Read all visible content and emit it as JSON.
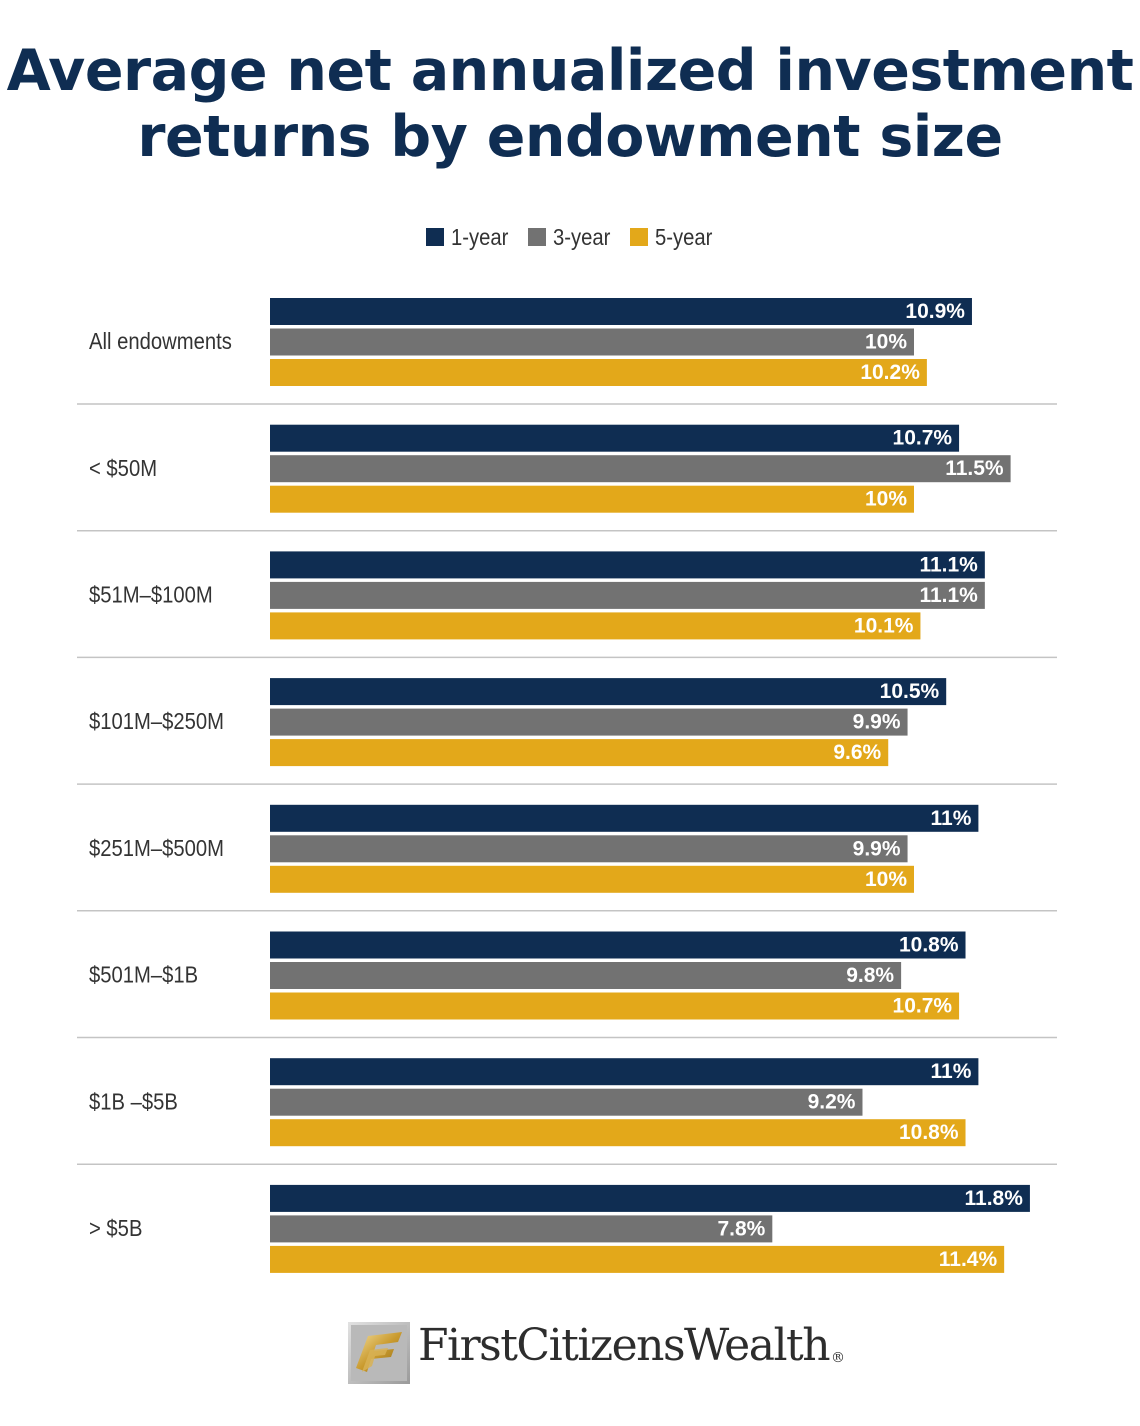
{
  "chart_data": {
    "type": "bar",
    "orientation": "horizontal",
    "title_lines": [
      "Average net annualized investment",
      "returns by endowment size"
    ],
    "categories": [
      "All endowments",
      "< $50M",
      "$51M–$100M",
      "$101M–$250M",
      "$251M–$500M",
      "$501M–$1B",
      "$1B –$5B",
      "> $5B"
    ],
    "series": [
      {
        "name": "1-year",
        "color": "#0f2d52",
        "values": [
          10.9,
          10.7,
          11.1,
          10.5,
          11.0,
          10.8,
          11.0,
          11.8
        ],
        "labels": [
          "10.9%",
          "10.7%",
          "11.1%",
          "10.5%",
          "11%",
          "10.8%",
          "11%",
          "11.8%"
        ]
      },
      {
        "name": "3-year",
        "color": "#727272",
        "values": [
          10.0,
          11.5,
          11.1,
          9.9,
          9.9,
          9.8,
          9.2,
          7.8
        ],
        "labels": [
          "10%",
          "11.5%",
          "11.1%",
          "9.9%",
          "9.9%",
          "9.8%",
          "9.2%",
          "7.8%"
        ]
      },
      {
        "name": "5-year",
        "color": "#e3a81a",
        "values": [
          10.2,
          10.0,
          10.1,
          9.6,
          10.0,
          10.7,
          10.8,
          11.4
        ],
        "labels": [
          "10.2%",
          "10%",
          "10.1%",
          "9.6%",
          "10%",
          "10.7%",
          "10.8%",
          "11.4%"
        ]
      }
    ],
    "xlim": [
      0,
      11.8
    ],
    "legend": "top-center",
    "grid": false
  },
  "footer": {
    "brand": "First Citizens Wealth",
    "brand_parts": [
      "First",
      "Citizens",
      "Wealth"
    ],
    "registered_mark": "®",
    "logo_icon": "first-citizens-logo-icon"
  }
}
